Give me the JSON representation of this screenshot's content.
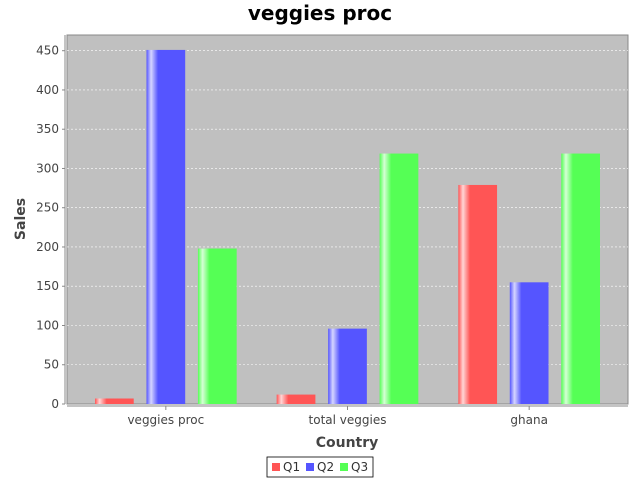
{
  "chart_data": {
    "type": "bar",
    "title": "veggies proc",
    "xlabel": "Country",
    "ylabel": "Sales",
    "categories": [
      "veggies proc",
      "total veggies",
      "ghana"
    ],
    "series": [
      {
        "name": "Q1",
        "color": "#ff5555",
        "values": [
          7,
          12,
          279
        ]
      },
      {
        "name": "Q2",
        "color": "#5555ff",
        "values": [
          451,
          96,
          155
        ]
      },
      {
        "name": "Q3",
        "color": "#55ff55",
        "values": [
          198,
          319,
          319
        ]
      }
    ],
    "ylim": [
      0,
      470
    ],
    "yticks": [
      0,
      50,
      100,
      150,
      200,
      250,
      300,
      350,
      400,
      450
    ],
    "grid": true,
    "legend_position": "bottom",
    "plot_background": "#c0c0c0"
  }
}
